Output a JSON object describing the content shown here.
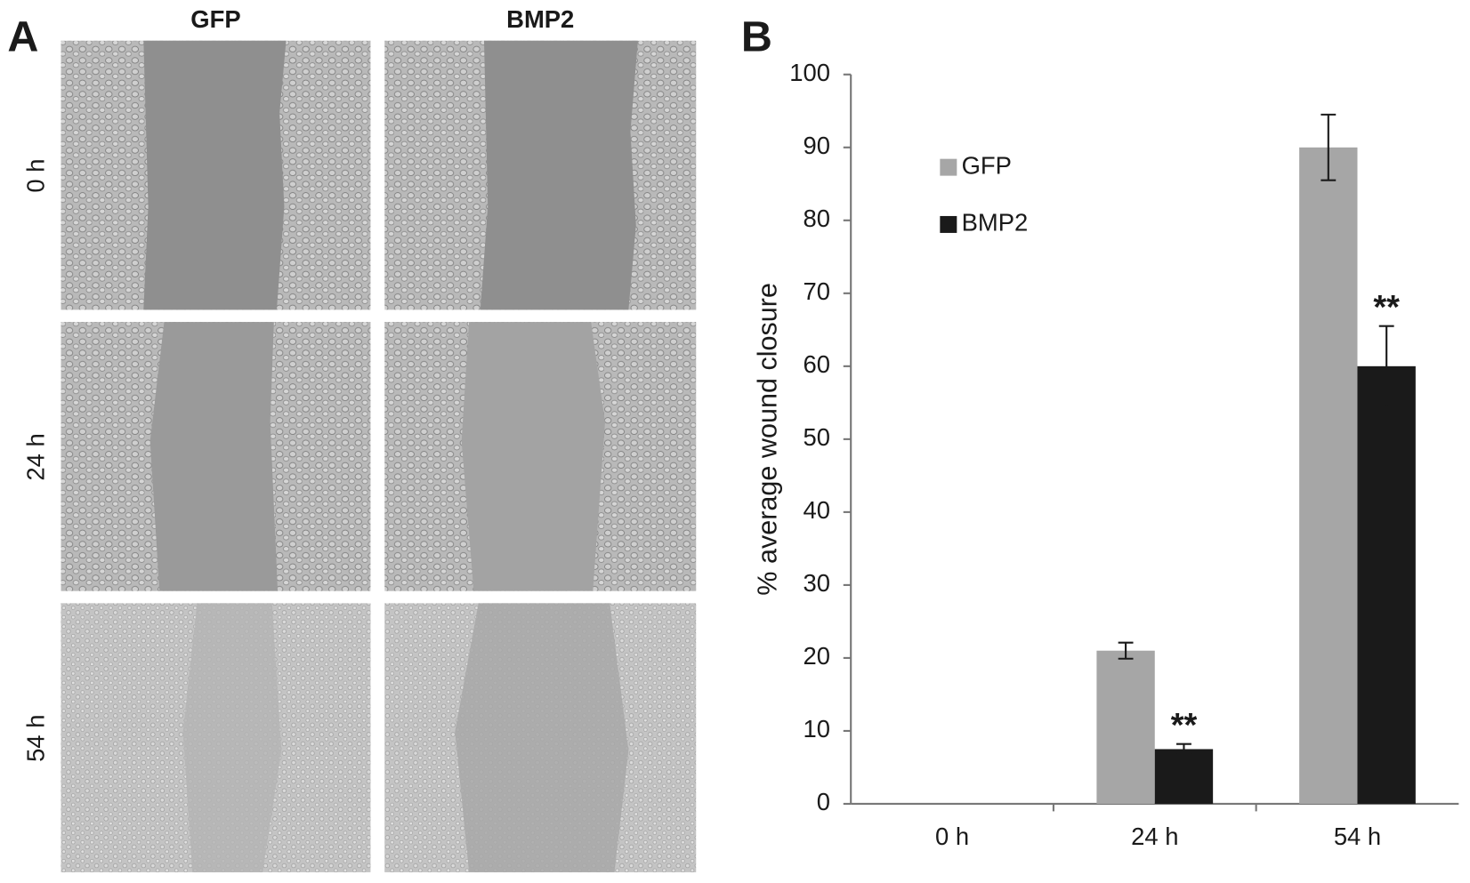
{
  "panel_a": {
    "label": "A",
    "columns": [
      "GFP",
      "BMP2"
    ],
    "rows": [
      "0 h",
      "24 h",
      "54 h"
    ]
  },
  "chart_data": {
    "type": "bar",
    "panel_label": "B",
    "y_label": "% average wound closure",
    "categories": [
      "0 h",
      "24 h",
      "54 h"
    ],
    "series": [
      {
        "name": "GFP",
        "color": "#a6a6a6",
        "values": [
          0,
          21,
          90
        ],
        "errors": [
          0,
          1.1,
          4.5
        ]
      },
      {
        "name": "BMP2",
        "color": "#1a1a1a",
        "values": [
          0,
          7.5,
          60
        ],
        "errors": [
          0,
          0.7,
          5.5
        ]
      }
    ],
    "annotations": [
      {
        "text": "**",
        "category": "24 h",
        "series": "BMP2"
      },
      {
        "text": "**",
        "category": "54 h",
        "series": "BMP2"
      }
    ],
    "ylim": [
      0,
      100
    ],
    "yticks": [
      0,
      10,
      20,
      30,
      40,
      50,
      60,
      70,
      80,
      90,
      100
    ],
    "grid": false,
    "legend": "upper-left"
  }
}
